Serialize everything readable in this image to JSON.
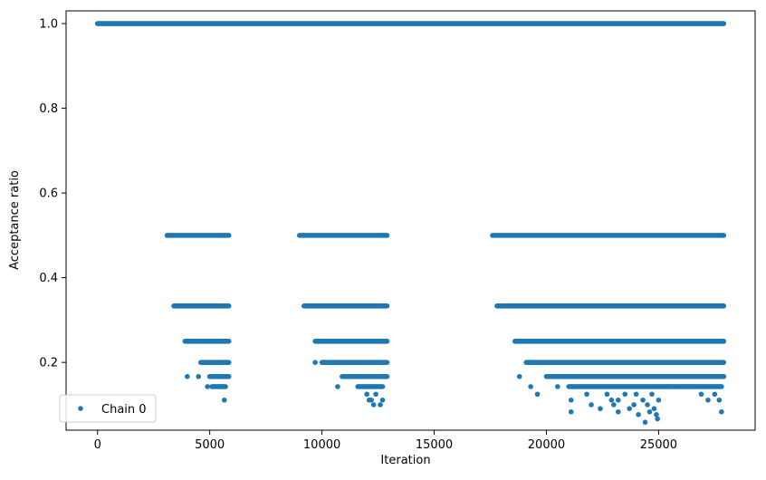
{
  "chart_data": {
    "type": "scatter",
    "title": "",
    "xlabel": "Iteration",
    "ylabel": "Acceptance ratio",
    "xlim": [
      -1400,
      29300
    ],
    "ylim": [
      0.04,
      1.03
    ],
    "xticks": [
      0,
      5000,
      10000,
      15000,
      20000,
      25000
    ],
    "xtick_labels": [
      "0",
      "5000",
      "10000",
      "15000",
      "20000",
      "25000"
    ],
    "yticks": [
      0.2,
      0.4,
      0.6,
      0.8,
      1.0
    ],
    "ytick_labels": [
      "0.2",
      "0.4",
      "0.6",
      "0.8",
      "1.0"
    ],
    "grid": false,
    "legend_position": "lower-left",
    "marker_color": "#1f77b4",
    "series": [
      {
        "name": "Chain 0",
        "bands": [
          {
            "y": 1.0,
            "x_ranges": [
              [
                0,
                27900
              ]
            ]
          },
          {
            "y": 0.5,
            "x_ranges": [
              [
                3100,
                5850
              ],
              [
                9000,
                12900
              ],
              [
                17600,
                27900
              ]
            ]
          },
          {
            "y": 0.3333,
            "x_ranges": [
              [
                3400,
                5850
              ],
              [
                9200,
                12900
              ],
              [
                17800,
                27900
              ]
            ]
          },
          {
            "y": 0.25,
            "x_ranges": [
              [
                3900,
                5850
              ],
              [
                9700,
                12900
              ],
              [
                18600,
                27900
              ]
            ]
          },
          {
            "y": 0.2,
            "x_ranges": [
              [
                4600,
                5850
              ],
              [
                10000,
                12900
              ],
              [
                19100,
                27900
              ]
            ]
          },
          {
            "y": 0.1667,
            "x_ranges": [
              [
                5000,
                5850
              ],
              [
                10900,
                12900
              ],
              [
                20000,
                27900
              ]
            ]
          },
          {
            "y": 0.1429,
            "x_ranges": [
              [
                5100,
                5700
              ],
              [
                11600,
                12700
              ],
              [
                21000,
                27800
              ]
            ]
          }
        ],
        "points": [
          [
            4000,
            0.1667
          ],
          [
            4500,
            0.1667
          ],
          [
            4900,
            0.1429
          ],
          [
            5450,
            0.1429
          ],
          [
            5650,
            0.1111
          ],
          [
            9700,
            0.2
          ],
          [
            10700,
            0.1429
          ],
          [
            11500,
            0.1667
          ],
          [
            12000,
            0.125
          ],
          [
            12100,
            0.1111
          ],
          [
            12200,
            0.1111
          ],
          [
            12300,
            0.1
          ],
          [
            12400,
            0.125
          ],
          [
            12600,
            0.1
          ],
          [
            12700,
            0.1111
          ],
          [
            18800,
            0.1667
          ],
          [
            19300,
            0.1429
          ],
          [
            19600,
            0.125
          ],
          [
            20500,
            0.1429
          ],
          [
            21100,
            0.0833
          ],
          [
            21100,
            0.1111
          ],
          [
            21800,
            0.125
          ],
          [
            22000,
            0.1
          ],
          [
            22400,
            0.0909
          ],
          [
            22700,
            0.125
          ],
          [
            22900,
            0.1111
          ],
          [
            23000,
            0.1
          ],
          [
            23200,
            0.1111
          ],
          [
            23200,
            0.0833
          ],
          [
            23500,
            0.125
          ],
          [
            23700,
            0.0909
          ],
          [
            23900,
            0.1
          ],
          [
            24000,
            0.125
          ],
          [
            24100,
            0.0769
          ],
          [
            24300,
            0.1111
          ],
          [
            24400,
            0.0588
          ],
          [
            24500,
            0.1
          ],
          [
            24600,
            0.0833
          ],
          [
            24700,
            0.125
          ],
          [
            24800,
            0.0909
          ],
          [
            24900,
            0.0769
          ],
          [
            24950,
            0.0667
          ],
          [
            25000,
            0.1111
          ],
          [
            25400,
            0.1429
          ],
          [
            26200,
            0.1429
          ],
          [
            26500,
            0.1429
          ],
          [
            26900,
            0.125
          ],
          [
            27200,
            0.1111
          ],
          [
            27500,
            0.125
          ],
          [
            27800,
            0.0833
          ],
          [
            27700,
            0.1111
          ]
        ]
      }
    ]
  }
}
